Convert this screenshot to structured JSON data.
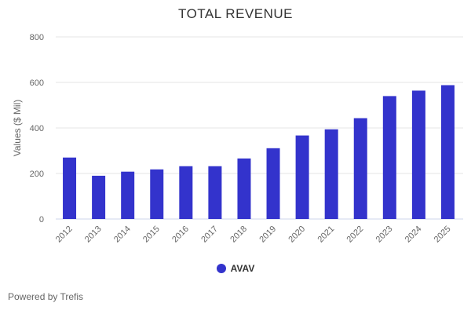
{
  "chart_data": {
    "type": "bar",
    "title": "TOTAL REVENUE",
    "ylabel": "Values ($ Mil)",
    "xlabel": "",
    "ylim": [
      0,
      800
    ],
    "yticks": [
      0,
      200,
      400,
      600,
      800
    ],
    "grid": true,
    "legend_position": "bottom",
    "categories": [
      "2012",
      "2013",
      "2014",
      "2015",
      "2016",
      "2017",
      "2018",
      "2019",
      "2020",
      "2021",
      "2022",
      "2023",
      "2024",
      "2025"
    ],
    "series": [
      {
        "name": "AVAV",
        "color": "#3333cc",
        "values": [
          270,
          190,
          208,
          218,
          232,
          232,
          266,
          311,
          367,
          394,
          443,
          540,
          564,
          588
        ]
      }
    ]
  },
  "credit": "Powered by Trefis"
}
